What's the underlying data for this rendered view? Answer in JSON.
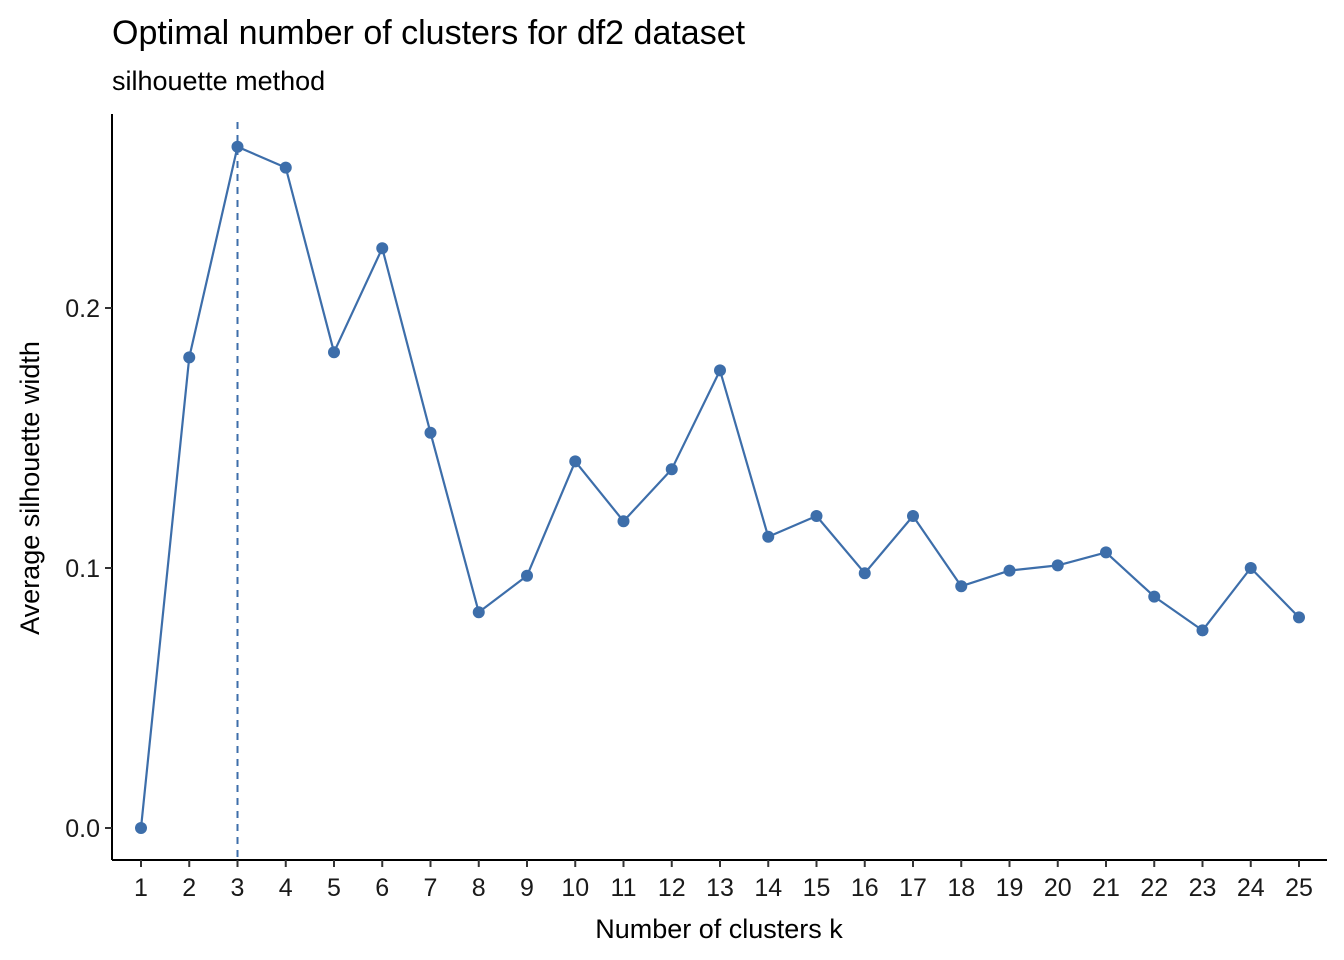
{
  "chart_data": {
    "type": "line",
    "title": "Optimal number of clusters for df2 dataset",
    "subtitle": "silhouette method",
    "xlabel": "Number of clusters k",
    "ylabel": "Average silhouette width",
    "categories": [
      "1",
      "2",
      "3",
      "4",
      "5",
      "6",
      "7",
      "8",
      "9",
      "10",
      "11",
      "12",
      "13",
      "14",
      "15",
      "16",
      "17",
      "18",
      "19",
      "20",
      "21",
      "22",
      "23",
      "24",
      "25"
    ],
    "series": [
      {
        "values": [
          0.0,
          0.181,
          0.262,
          0.254,
          0.183,
          0.223,
          0.152,
          0.083,
          0.097,
          0.141,
          0.118,
          0.138,
          0.176,
          0.112,
          0.12,
          0.098,
          0.12,
          0.093,
          0.099,
          0.101,
          0.106,
          0.089,
          0.076,
          0.1,
          0.081
        ],
        "color": "#3d6eaa"
      }
    ],
    "optimal_k": "3",
    "yticks": [
      "0.0",
      "0.1",
      "0.2"
    ],
    "ylim": [
      -0.0125,
      0.275
    ],
    "grid": false,
    "legend": "none"
  }
}
